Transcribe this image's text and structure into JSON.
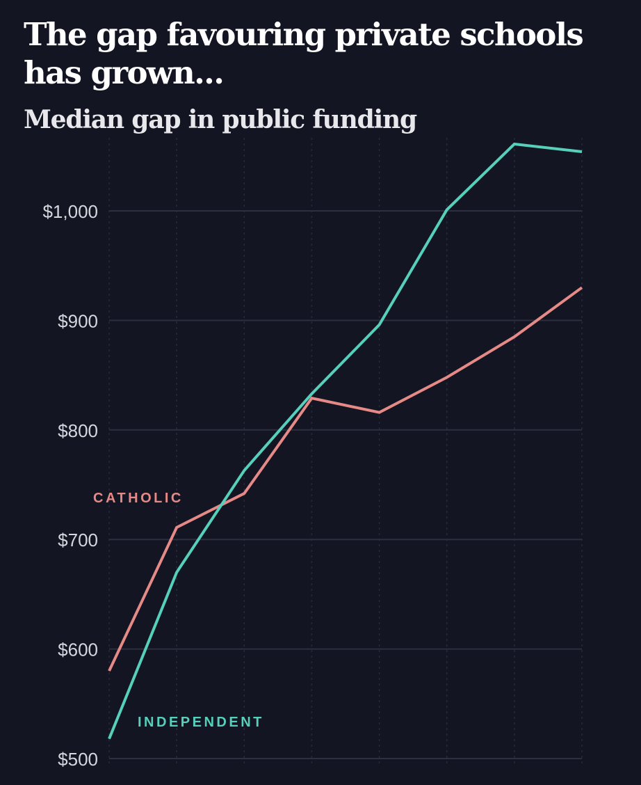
{
  "title": "The gap favouring private schools has grown...",
  "subtitle": "Median gap in public funding",
  "colors": {
    "background": "#131522",
    "grid": "#2c2f40",
    "vgrid": "#272a3a",
    "catholic": "#e58a87",
    "independent": "#56d0bb"
  },
  "chart_data": {
    "type": "line",
    "title": "The gap favouring private schools has grown...",
    "subtitle": "Median gap in public funding",
    "xlabel": "",
    "ylabel": "",
    "x": [
      1,
      2,
      3,
      4,
      5,
      6,
      7,
      8
    ],
    "ylim": [
      500,
      1060
    ],
    "yticks": [
      500,
      600,
      700,
      800,
      900,
      1000
    ],
    "ytick_labels": [
      "$500",
      "$600",
      "$700",
      "$800",
      "$900",
      "$1,000"
    ],
    "series": [
      {
        "name": "CATHOLIC",
        "color": "#e58a87",
        "values": [
          580,
          711,
          742,
          829,
          816,
          848,
          885,
          930
        ]
      },
      {
        "name": "INDEPENDENT",
        "color": "#56d0bb",
        "values": [
          518,
          670,
          763,
          833,
          896,
          1001,
          1061,
          1054
        ]
      }
    ],
    "grid": true
  }
}
